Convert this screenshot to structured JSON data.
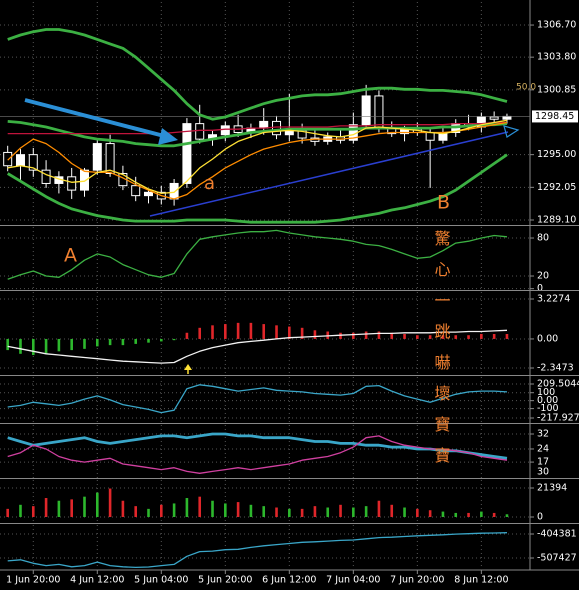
{
  "annotations": [
    "A",
    "a",
    "B",
    "驚心一跳嚇壞寶寶",
    "50.0"
  ],
  "chart_data": [
    {
      "type": "candlestick",
      "xlim": [
        -0.6,
        40.8
      ],
      "xticks": [
        {
          "value": 2,
          "label": "1 Jun 20:00"
        },
        {
          "value": 7,
          "label": "4 Jun 12:00"
        },
        {
          "value": 12,
          "label": "5 Jun 04:00"
        },
        {
          "value": 17,
          "label": "5 Jun 20:00"
        },
        {
          "value": 22,
          "label": "6 Jun 12:00"
        },
        {
          "value": 27,
          "label": "7 Jun 04:00"
        },
        {
          "value": 32,
          "label": "7 Jun 20:00"
        },
        {
          "value": 37,
          "label": "8 Jun 12:00"
        }
      ],
      "ylim": [
        1288.74,
        1308.78
      ],
      "yticks": [
        {
          "value": 1306.7,
          "label": "1306.70"
        },
        {
          "value": 1303.8,
          "label": "1303.80"
        },
        {
          "value": 1300.85,
          "label": "1300.85"
        },
        {
          "value": 1295,
          "label": "1295.00"
        },
        {
          "value": 1292.05,
          "label": "1292.05"
        },
        {
          "value": 1289.1,
          "label": "1289.10"
        }
      ],
      "last_price": 1298.45,
      "grid": true,
      "up_color": "#ffffff",
      "down_color": "#000000",
      "open": [
        1295.2,
        1294.0,
        1295.0,
        1293.6,
        1292.4,
        1293.0,
        1291.8,
        1293.6,
        1296.0,
        1293.3,
        1292.2,
        1291.3,
        1291.6,
        1291.0,
        1292.4,
        1297.8,
        1296.4,
        1296.8,
        1297.6,
        1297.0,
        1297.4,
        1298.0,
        1296.8,
        1297.2,
        1296.5,
        1296.2,
        1296.6,
        1296.3,
        1297.7,
        1300.3,
        1297.4,
        1296.9,
        1297.3,
        1297.0,
        1296.3,
        1297.0,
        1297.8,
        1297.5,
        1298.4,
        1298.2
      ],
      "high": [
        1295.8,
        1295.5,
        1295.6,
        1294.5,
        1293.5,
        1293.8,
        1293.8,
        1296.5,
        1296.8,
        1294.0,
        1293.0,
        1291.8,
        1292.2,
        1292.8,
        1298.3,
        1299.5,
        1297.2,
        1298.0,
        1298.6,
        1297.8,
        1299.2,
        1298.5,
        1300.5,
        1297.8,
        1297.3,
        1297.0,
        1297.4,
        1298.8,
        1301.3,
        1300.8,
        1298.0,
        1297.6,
        1297.9,
        1297.5,
        1297.4,
        1298.2,
        1298.6,
        1298.8,
        1298.9,
        1298.7
      ],
      "low": [
        1293.5,
        1292.5,
        1293.0,
        1292.0,
        1291.5,
        1291.0,
        1291.2,
        1293.2,
        1293.0,
        1291.8,
        1290.8,
        1290.6,
        1290.5,
        1290.4,
        1292.0,
        1296.0,
        1295.8,
        1296.2,
        1296.6,
        1296.5,
        1296.8,
        1296.4,
        1296.2,
        1296.0,
        1295.8,
        1295.9,
        1296.0,
        1296.0,
        1297.3,
        1297.0,
        1296.6,
        1296.2,
        1296.7,
        1292.0,
        1296.0,
        1296.6,
        1297.2,
        1297.0,
        1297.9,
        1297.8
      ],
      "close": [
        1294.0,
        1295.0,
        1293.6,
        1292.4,
        1293.0,
        1291.8,
        1293.6,
        1296.0,
        1293.3,
        1292.2,
        1291.3,
        1291.6,
        1291.0,
        1292.4,
        1297.8,
        1296.4,
        1296.8,
        1297.6,
        1297.0,
        1297.4,
        1298.0,
        1296.8,
        1297.2,
        1296.5,
        1296.2,
        1296.6,
        1296.3,
        1297.7,
        1300.3,
        1297.4,
        1296.9,
        1297.3,
        1297.0,
        1296.3,
        1297.0,
        1297.8,
        1297.5,
        1298.4,
        1298.2,
        1298.45
      ],
      "series": [
        {
          "color": "#3cb043",
          "style": "thick",
          "values": [
            1305.4,
            1305.8,
            1306.1,
            1306.3,
            1306.3,
            1306.1,
            1305.8,
            1305.4,
            1305.0,
            1304.6,
            1303.8,
            1302.8,
            1301.8,
            1300.8,
            1299.6,
            1298.6,
            1298.2,
            1298.4,
            1298.8,
            1299.2,
            1299.6,
            1299.9,
            1300.1,
            1300.3,
            1300.4,
            1300.4,
            1300.5,
            1300.7,
            1300.9,
            1301.0,
            1301.0,
            1300.9,
            1300.9,
            1300.8,
            1300.8,
            1300.7,
            1300.6,
            1300.4,
            1300.1,
            1299.8
          ]
        },
        {
          "color": "#3cb043",
          "style": "thick",
          "values": [
            1298.0,
            1297.9,
            1297.7,
            1297.5,
            1297.2,
            1296.9,
            1296.6,
            1296.4,
            1296.3,
            1296.2,
            1296.0,
            1295.9,
            1295.8,
            1295.8,
            1296.0,
            1296.2,
            1296.4,
            1296.6,
            1296.8,
            1297.0,
            1297.1,
            1297.2,
            1297.3,
            1297.3,
            1297.3,
            1297.3,
            1297.3,
            1297.3,
            1297.4,
            1297.4,
            1297.4,
            1297.4,
            1297.4,
            1297.4,
            1297.5,
            1297.5,
            1297.6,
            1297.7,
            1297.7,
            1297.8
          ]
        },
        {
          "color": "#3cb043",
          "style": "thick",
          "values": [
            1293.3,
            1292.6,
            1291.9,
            1291.2,
            1290.6,
            1290.1,
            1289.8,
            1289.5,
            1289.3,
            1289.1,
            1289.0,
            1289.0,
            1289.0,
            1289.0,
            1289.1,
            1289.1,
            1289.1,
            1289.1,
            1289.0,
            1288.9,
            1288.9,
            1288.9,
            1288.9,
            1288.9,
            1288.9,
            1289.0,
            1289.1,
            1289.3,
            1289.5,
            1289.7,
            1290.0,
            1290.2,
            1290.5,
            1290.8,
            1291.2,
            1291.8,
            1292.6,
            1293.4,
            1294.2,
            1295.0
          ]
        },
        {
          "color": "#c0143c",
          "style": "thin",
          "values": [
            1296.9,
            1296.9,
            1296.9,
            1296.9,
            1296.9,
            1296.9,
            1296.9,
            1296.9,
            1296.9,
            1296.9,
            1296.9,
            1296.9,
            1296.9,
            1297.0,
            1297.1,
            1297.2,
            1297.2,
            1297.3,
            1297.3,
            1297.4,
            1297.4,
            1297.5,
            1297.5,
            1297.5,
            1297.5,
            1297.5,
            1297.6,
            1297.6,
            1297.6,
            1297.7,
            1297.7,
            1297.7,
            1297.7,
            1297.7,
            1297.7,
            1297.8,
            1297.8,
            1297.8,
            1297.9,
            1297.9
          ]
        },
        {
          "color": "#ff8c00",
          "style": "thin",
          "values": [
            1294.5,
            1295.6,
            1296.4,
            1296.0,
            1295.2,
            1294.2,
            1293.5,
            1293.4,
            1293.4,
            1292.9,
            1292.3,
            1291.8,
            1291.3,
            1291.0,
            1291.4,
            1292.3,
            1293.0,
            1293.8,
            1294.4,
            1295.0,
            1295.5,
            1295.8,
            1296.1,
            1296.3,
            1296.4,
            1296.4,
            1296.4,
            1296.5,
            1296.7,
            1296.9,
            1297.0,
            1297.0,
            1297.0,
            1297.0,
            1297.0,
            1297.1,
            1297.3,
            1297.5,
            1297.7,
            1297.9
          ]
        },
        {
          "color": "#ffe135",
          "style": "thin",
          "values": [
            1293.8,
            1294.0,
            1293.8,
            1293.2,
            1292.8,
            1292.5,
            1292.6,
            1293.4,
            1293.6,
            1293.2,
            1292.5,
            1291.9,
            1291.5,
            1291.6,
            1292.6,
            1293.8,
            1294.6,
            1295.5,
            1296.2,
            1296.6,
            1297.0,
            1297.1,
            1297.2,
            1297.1,
            1296.9,
            1296.7,
            1296.6,
            1296.8,
            1297.4,
            1297.5,
            1297.4,
            1297.3,
            1297.2,
            1297.0,
            1296.9,
            1297.1,
            1297.4,
            1297.7,
            1297.9,
            1298.1
          ]
        }
      ]
    },
    {
      "type": "line",
      "ylim": [
        -0.5,
        97.4
      ],
      "yticks": [
        80,
        20,
        0
      ],
      "grid": true,
      "series": [
        {
          "color": "#3cb043",
          "style": "thin",
          "values": [
            15,
            22,
            28,
            20,
            18,
            30,
            45,
            55,
            50,
            38,
            30,
            22,
            18,
            24,
            55,
            78,
            82,
            85,
            88,
            90,
            90,
            92,
            88,
            85,
            82,
            80,
            78,
            75,
            70,
            68,
            62,
            55,
            48,
            50,
            60,
            72,
            75,
            80,
            84,
            82
          ]
        }
      ]
    },
    {
      "type": "bar",
      "ylim": [
        -2.913,
        3.793
      ],
      "yticks": [
        3.2274,
        {
          "value": 0,
          "label": "0.00"
        },
        -2.3473
      ],
      "grid": true,
      "color_negative": "#2db82d",
      "color_positive": "#e0262a",
      "values": [
        -0.9,
        -1.2,
        -1.3,
        -1.2,
        -1.0,
        -0.9,
        -0.8,
        -0.6,
        -0.5,
        -0.5,
        -0.4,
        -0.3,
        -0.2,
        -0.1,
        0.5,
        0.9,
        1.1,
        1.2,
        1.3,
        1.3,
        1.2,
        1.1,
        1.0,
        0.9,
        0.7,
        0.6,
        0.5,
        0.5,
        0.6,
        0.6,
        0.5,
        0.4,
        0.3,
        0.3,
        0.3,
        0.3,
        0.3,
        0.4,
        0.4,
        0.4
      ],
      "series": [
        {
          "color": "#f2f2f2",
          "style": "thin",
          "values": [
            -0.6,
            -0.8,
            -1.0,
            -1.2,
            -1.3,
            -1.4,
            -1.5,
            -1.6,
            -1.7,
            -1.8,
            -1.85,
            -1.9,
            -1.95,
            -1.9,
            -1.4,
            -1.0,
            -0.7,
            -0.5,
            -0.3,
            -0.2,
            -0.1,
            0.0,
            0.1,
            0.15,
            0.2,
            0.25,
            0.3,
            0.35,
            0.4,
            0.45,
            0.45,
            0.5,
            0.5,
            0.5,
            0.55,
            0.55,
            0.6,
            0.6,
            0.65,
            0.7
          ]
        }
      ]
    },
    {
      "type": "line",
      "ylim": [
        -280.8,
        297.5
      ],
      "yticks": [
        209.5044,
        100,
        {
          "value": 0,
          "label": "0.00"
        },
        -100,
        -217.9279
      ],
      "grid": true,
      "series": [
        {
          "color": "#3aa6c8",
          "style": "thin",
          "values": [
            -80,
            -60,
            -20,
            -40,
            -60,
            -30,
            20,
            60,
            10,
            -50,
            -80,
            -110,
            -150,
            -120,
            150,
            200,
            180,
            150,
            120,
            140,
            160,
            130,
            120,
            110,
            90,
            80,
            70,
            90,
            180,
            190,
            120,
            60,
            20,
            -20,
            30,
            80,
            110,
            120,
            120,
            110
          ]
        }
      ]
    },
    {
      "type": "line",
      "ylim": [
        8.5,
        36.8
      ],
      "yticks": [
        32,
        24,
        17
      ],
      "annotations": [
        "30"
      ],
      "grid": true,
      "series": [
        {
          "color": "#3aa6c8",
          "style": "thick",
          "values": [
            30,
            28,
            26,
            27,
            28,
            29,
            30,
            28,
            27,
            28,
            29,
            30,
            31,
            31,
            30,
            31,
            32,
            32,
            31,
            31,
            30,
            30,
            30,
            29,
            28,
            28,
            27,
            27,
            26,
            26,
            25,
            25,
            24,
            24,
            23,
            23,
            22,
            21,
            20,
            19
          ]
        },
        {
          "color": "#d040a0",
          "style": "thin",
          "values": [
            20,
            22,
            26,
            24,
            20,
            18,
            17,
            18,
            19,
            16,
            15,
            14,
            13,
            14,
            12,
            11,
            12,
            13,
            14,
            13,
            14,
            15,
            16,
            18,
            19,
            20,
            22,
            25,
            30,
            31,
            28,
            26,
            25,
            24,
            24,
            23,
            22,
            20,
            19,
            18
          ]
        }
      ]
    },
    {
      "type": "bar",
      "ylim": [
        -4426,
        27296
      ],
      "yticks": [
        21394,
        0
      ],
      "grid": true,
      "up_color": "#2db82d",
      "down_color": "#e0262a",
      "values": [
        6000,
        9000,
        8000,
        14000,
        12000,
        13000,
        15000,
        18000,
        21000,
        12000,
        8000,
        6000,
        9000,
        10000,
        14000,
        15000,
        12000,
        10000,
        11000,
        9000,
        8000,
        7000,
        6000,
        6000,
        8000,
        7000,
        9000,
        7000,
        8000,
        12000,
        9000,
        7000,
        6000,
        5000,
        4000,
        3000,
        3000,
        4000,
        3000,
        2000
      ]
    },
    {
      "type": "line",
      "ylim": [
        -550363,
        -365739
      ],
      "yticks": [
        -404381,
        -507427
      ],
      "grid": true,
      "series": [
        {
          "color": "#3aa6c8",
          "style": "thin",
          "values": [
            -520000,
            -515000,
            -530000,
            -540000,
            -535000,
            -545000,
            -540000,
            -525000,
            -540000,
            -545000,
            -548000,
            -546000,
            -540000,
            -535000,
            -500000,
            -480000,
            -478000,
            -472000,
            -470000,
            -462000,
            -455000,
            -450000,
            -445000,
            -440000,
            -438000,
            -435000,
            -432000,
            -430000,
            -425000,
            -420000,
            -418000,
            -415000,
            -412000,
            -410000,
            -408000,
            -405000,
            -403000,
            -401000,
            -400000,
            -399000
          ]
        }
      ]
    }
  ]
}
